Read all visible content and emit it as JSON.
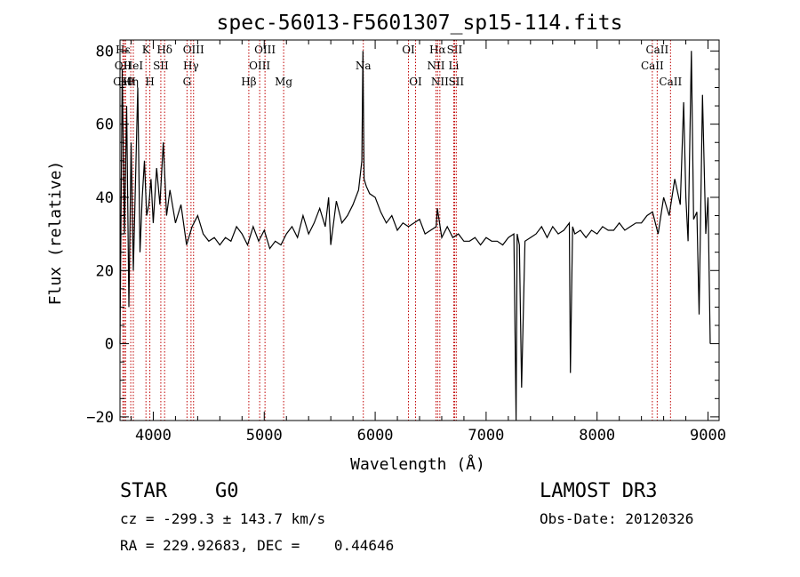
{
  "chart_data": {
    "type": "line",
    "title": "spec-56013-F5601307_sp15-114.fits",
    "xlabel": "Wavelength (Å)",
    "ylabel": "Flux (relative)",
    "xlim": [
      3700,
      9100
    ],
    "ylim": [
      -21,
      83
    ],
    "x_ticks": [
      4000,
      5000,
      6000,
      7000,
      8000,
      9000
    ],
    "y_ticks": [
      -20,
      0,
      20,
      40,
      60,
      80
    ],
    "series": [
      {
        "name": "flux",
        "x": [
          3700,
          3720,
          3740,
          3760,
          3780,
          3800,
          3820,
          3840,
          3860,
          3880,
          3900,
          3920,
          3940,
          3960,
          3980,
          4000,
          4030,
          4060,
          4090,
          4120,
          4150,
          4200,
          4250,
          4300,
          4350,
          4400,
          4450,
          4500,
          4550,
          4600,
          4650,
          4700,
          4750,
          4800,
          4850,
          4900,
          4950,
          5000,
          5050,
          5100,
          5150,
          5200,
          5250,
          5300,
          5350,
          5400,
          5450,
          5500,
          5550,
          5580,
          5600,
          5650,
          5700,
          5750,
          5800,
          5850,
          5880,
          5890,
          5900,
          5920,
          5950,
          6000,
          6050,
          6100,
          6150,
          6200,
          6250,
          6300,
          6350,
          6400,
          6450,
          6500,
          6550,
          6560,
          6600,
          6650,
          6700,
          6750,
          6800,
          6850,
          6900,
          6950,
          7000,
          7050,
          7100,
          7150,
          7200,
          7250,
          7270,
          7280,
          7300,
          7320,
          7350,
          7400,
          7450,
          7500,
          7550,
          7600,
          7650,
          7700,
          7750,
          7760,
          7780,
          7800,
          7850,
          7900,
          7950,
          8000,
          8050,
          8100,
          8150,
          8200,
          8250,
          8300,
          8350,
          8400,
          8450,
          8500,
          8550,
          8600,
          8650,
          8700,
          8750,
          8780,
          8800,
          8820,
          8850,
          8870,
          8900,
          8920,
          8950,
          8980,
          9000,
          9020
        ],
        "y": [
          0,
          75,
          30,
          65,
          10,
          55,
          20,
          45,
          70,
          25,
          40,
          50,
          35,
          38,
          45,
          33,
          48,
          38,
          55,
          35,
          42,
          33,
          38,
          27,
          32,
          35,
          30,
          28,
          29,
          27,
          29,
          28,
          32,
          30,
          27,
          32,
          28,
          31,
          26,
          28,
          27,
          30,
          32,
          29,
          35,
          30,
          33,
          37,
          32,
          40,
          27,
          39,
          33,
          35,
          38,
          42,
          50,
          80,
          45,
          43,
          41,
          40,
          36,
          33,
          35,
          31,
          33,
          32,
          33,
          34,
          30,
          31,
          32,
          37,
          29,
          32,
          29,
          30,
          28,
          28,
          29,
          27,
          29,
          28,
          28,
          27,
          29,
          30,
          -22,
          30,
          27,
          -12,
          28,
          29,
          30,
          32,
          29,
          32,
          30,
          31,
          33,
          -8,
          32,
          30,
          31,
          29,
          31,
          30,
          32,
          31,
          31,
          33,
          31,
          32,
          33,
          33,
          35,
          36,
          30,
          40,
          35,
          45,
          38,
          66,
          40,
          28,
          80,
          34,
          36,
          8,
          68,
          30,
          40,
          0
        ]
      }
    ],
    "line_markers": [
      {
        "label": "Hε",
        "x": 3727,
        "row": 1
      },
      {
        "label": "OII",
        "x": 3727,
        "row": 2
      },
      {
        "label": "CaII",
        "x": 3740,
        "row": 3
      },
      {
        "label": "Hθ",
        "x": 3750,
        "row": 3
      },
      {
        "label": "Hη",
        "x": 3797,
        "row": 3
      },
      {
        "label": "HeI",
        "x": 3820,
        "row": 2
      },
      {
        "label": "K",
        "x": 3934,
        "row": 1
      },
      {
        "label": "SII",
        "x": 4068,
        "row": 2
      },
      {
        "label": "H",
        "x": 3969,
        "row": 3
      },
      {
        "label": "Hδ",
        "x": 4102,
        "row": 1
      },
      {
        "label": "OIII",
        "x": 4363,
        "row": 1
      },
      {
        "label": "Hγ",
        "x": 4340,
        "row": 2
      },
      {
        "label": "G",
        "x": 4304,
        "row": 3
      },
      {
        "label": "Hβ",
        "x": 4861,
        "row": 3
      },
      {
        "label": "OIII",
        "x": 5007,
        "row": 1
      },
      {
        "label": "OIII",
        "x": 4959,
        "row": 2
      },
      {
        "label": "Mg",
        "x": 5175,
        "row": 3
      },
      {
        "label": "Na",
        "x": 5893,
        "row": 2
      },
      {
        "label": "OI",
        "x": 6300,
        "row": 1
      },
      {
        "label": "OI",
        "x": 6364,
        "row": 3
      },
      {
        "label": "Hα",
        "x": 6563,
        "row": 1
      },
      {
        "label": "SII",
        "x": 6716,
        "row": 1
      },
      {
        "label": "NII",
        "x": 6548,
        "row": 2
      },
      {
        "label": "Li",
        "x": 6708,
        "row": 2
      },
      {
        "label": "NII",
        "x": 6583,
        "row": 3
      },
      {
        "label": "SII",
        "x": 6731,
        "row": 3
      },
      {
        "label": "CaII",
        "x": 8542,
        "row": 1
      },
      {
        "label": "CaII",
        "x": 8498,
        "row": 2
      },
      {
        "label": "CaII",
        "x": 8662,
        "row": 3
      }
    ]
  },
  "info": {
    "class_label": "STAR",
    "subclass": "G0",
    "survey": "LAMOST DR3",
    "cz_text": "cz = -299.3 ± 143.7 km/s",
    "obs_date": "Obs-Date: 20120326",
    "coords": "RA = 229.92683, DEC =    0.44646"
  },
  "colors": {
    "line": "#000000",
    "marker": "#c00000"
  }
}
